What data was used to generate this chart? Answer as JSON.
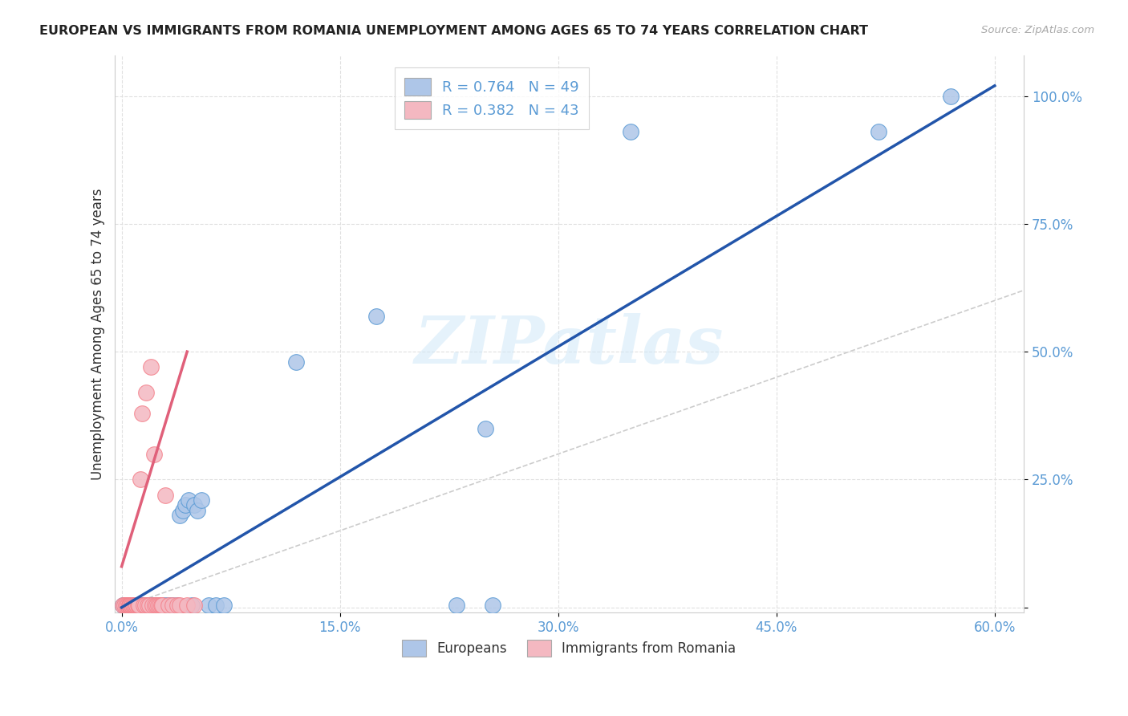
{
  "title": "EUROPEAN VS IMMIGRANTS FROM ROMANIA UNEMPLOYMENT AMONG AGES 65 TO 74 YEARS CORRELATION CHART",
  "source": "Source: ZipAtlas.com",
  "ylabel": "Unemployment Among Ages 65 to 74 years",
  "xlim": [
    -0.005,
    0.62
  ],
  "ylim": [
    -0.01,
    1.08
  ],
  "xticks": [
    0.0,
    0.15,
    0.3,
    0.45,
    0.6
  ],
  "yticks": [
    0.0,
    0.25,
    0.5,
    0.75,
    1.0
  ],
  "xticklabels": [
    "0.0%",
    "15.0%",
    "30.0%",
    "45.0%",
    "60.0%"
  ],
  "yticklabels": [
    "",
    "25.0%",
    "50.0%",
    "75.0%",
    "100.0%"
  ],
  "watermark": "ZIPatlas",
  "legend_entries": [
    {
      "label": "R = 0.764   N = 49",
      "color": "#aec6e8"
    },
    {
      "label": "R = 0.382   N = 43",
      "color": "#f4b8c1"
    }
  ],
  "legend_bottom": [
    "Europeans",
    "Immigrants from Romania"
  ],
  "blue_color": "#5b9bd5",
  "pink_color": "#f4828c",
  "blue_scatter_color": "#aec6e8",
  "pink_scatter_color": "#f4b8c1",
  "blue_line_color": "#2255aa",
  "pink_line_color": "#e0607a",
  "diagonal_color": "#cccccc",
  "blue_points": [
    [
      0.001,
      0.005
    ],
    [
      0.002,
      0.005
    ],
    [
      0.003,
      0.005
    ],
    [
      0.004,
      0.005
    ],
    [
      0.005,
      0.005
    ],
    [
      0.005,
      0.005
    ],
    [
      0.006,
      0.005
    ],
    [
      0.007,
      0.005
    ],
    [
      0.008,
      0.005
    ],
    [
      0.009,
      0.005
    ],
    [
      0.01,
      0.005
    ],
    [
      0.01,
      0.005
    ],
    [
      0.012,
      0.005
    ],
    [
      0.013,
      0.005
    ],
    [
      0.014,
      0.005
    ],
    [
      0.015,
      0.005
    ],
    [
      0.016,
      0.005
    ],
    [
      0.017,
      0.005
    ],
    [
      0.018,
      0.005
    ],
    [
      0.019,
      0.005
    ],
    [
      0.02,
      0.005
    ],
    [
      0.022,
      0.005
    ],
    [
      0.024,
      0.005
    ],
    [
      0.025,
      0.005
    ],
    [
      0.026,
      0.005
    ],
    [
      0.028,
      0.005
    ],
    [
      0.03,
      0.005
    ],
    [
      0.032,
      0.005
    ],
    [
      0.035,
      0.005
    ],
    [
      0.038,
      0.005
    ],
    [
      0.04,
      0.18
    ],
    [
      0.042,
      0.19
    ],
    [
      0.044,
      0.2
    ],
    [
      0.046,
      0.21
    ],
    [
      0.048,
      0.005
    ],
    [
      0.05,
      0.2
    ],
    [
      0.052,
      0.19
    ],
    [
      0.055,
      0.21
    ],
    [
      0.06,
      0.005
    ],
    [
      0.065,
      0.005
    ],
    [
      0.07,
      0.005
    ],
    [
      0.12,
      0.48
    ],
    [
      0.175,
      0.57
    ],
    [
      0.23,
      0.005
    ],
    [
      0.25,
      0.35
    ],
    [
      0.255,
      0.005
    ],
    [
      0.35,
      0.93
    ],
    [
      0.52,
      0.93
    ],
    [
      0.57,
      1.0
    ]
  ],
  "pink_points": [
    [
      0.001,
      0.005
    ],
    [
      0.002,
      0.005
    ],
    [
      0.003,
      0.005
    ],
    [
      0.004,
      0.005
    ],
    [
      0.004,
      0.005
    ],
    [
      0.005,
      0.005
    ],
    [
      0.005,
      0.005
    ],
    [
      0.006,
      0.005
    ],
    [
      0.006,
      0.005
    ],
    [
      0.007,
      0.005
    ],
    [
      0.007,
      0.005
    ],
    [
      0.008,
      0.005
    ],
    [
      0.008,
      0.005
    ],
    [
      0.009,
      0.005
    ],
    [
      0.009,
      0.005
    ],
    [
      0.01,
      0.005
    ],
    [
      0.01,
      0.005
    ],
    [
      0.011,
      0.005
    ],
    [
      0.012,
      0.005
    ],
    [
      0.012,
      0.005
    ],
    [
      0.013,
      0.25
    ],
    [
      0.014,
      0.38
    ],
    [
      0.015,
      0.005
    ],
    [
      0.016,
      0.005
    ],
    [
      0.017,
      0.42
    ],
    [
      0.018,
      0.005
    ],
    [
      0.019,
      0.005
    ],
    [
      0.02,
      0.47
    ],
    [
      0.021,
      0.005
    ],
    [
      0.022,
      0.3
    ],
    [
      0.023,
      0.005
    ],
    [
      0.024,
      0.005
    ],
    [
      0.025,
      0.005
    ],
    [
      0.026,
      0.005
    ],
    [
      0.027,
      0.005
    ],
    [
      0.028,
      0.005
    ],
    [
      0.03,
      0.22
    ],
    [
      0.032,
      0.005
    ],
    [
      0.035,
      0.005
    ],
    [
      0.038,
      0.005
    ],
    [
      0.04,
      0.005
    ],
    [
      0.045,
      0.005
    ],
    [
      0.05,
      0.005
    ]
  ],
  "blue_line": {
    "x0": 0.0,
    "y0": 0.0,
    "x1": 0.6,
    "y1": 1.02
  },
  "pink_line": {
    "x0": 0.0,
    "y0": 0.08,
    "x1": 0.045,
    "y1": 0.5
  },
  "background_color": "#ffffff",
  "grid_color": "#e0e0e0"
}
